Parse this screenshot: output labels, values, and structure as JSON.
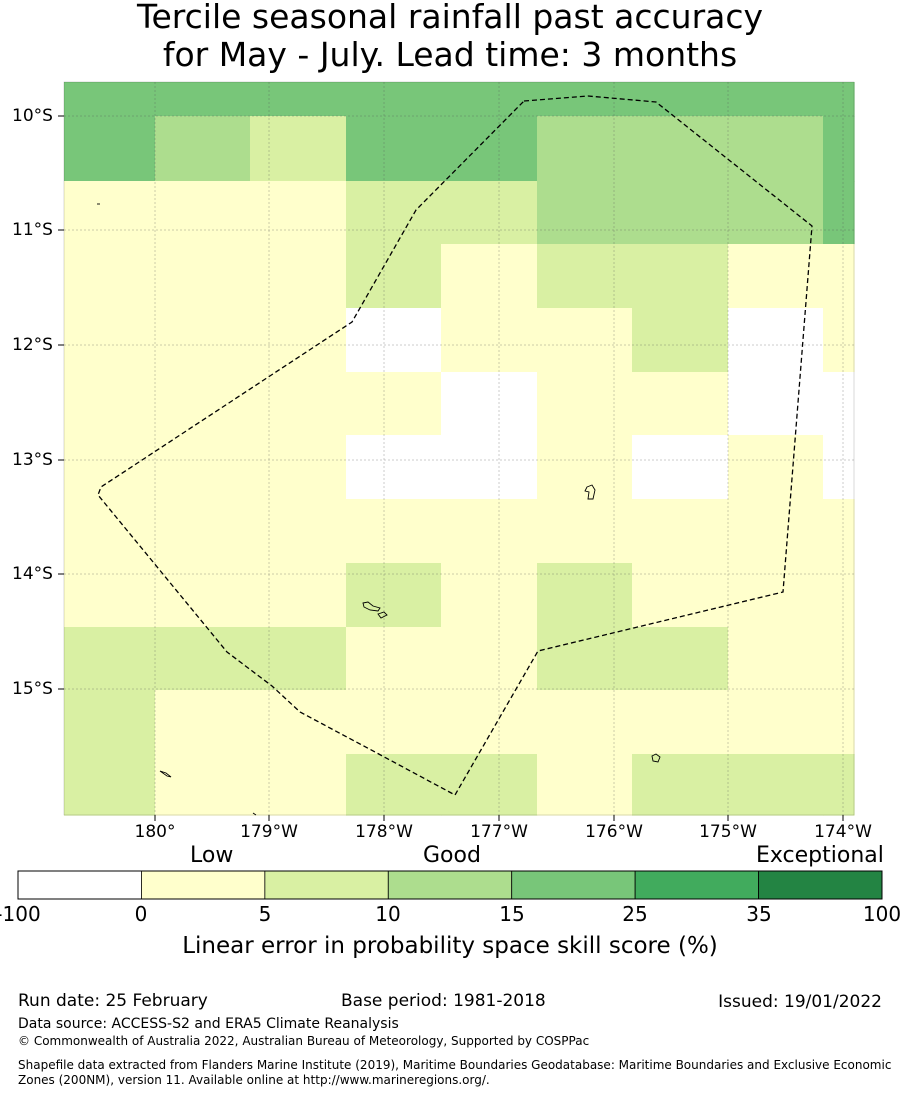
{
  "title": {
    "line1": "Tercile seasonal rainfall past accuracy",
    "line2": "for May - July. Lead time: 3 months"
  },
  "map": {
    "lat_labels": [
      "10°S",
      "11°S",
      "12°S",
      "13°S",
      "14°S",
      "15°S"
    ],
    "lon_labels": [
      "180°",
      "179°W",
      "178°W",
      "177°W",
      "176°W",
      "175°W",
      "174°W"
    ],
    "boundary_style": "dashed black line (EEZ)",
    "skill_grid": [
      [
        3,
        3,
        3,
        3,
        3,
        3,
        3,
        3,
        3
      ],
      [
        3,
        2,
        1,
        3,
        3,
        2,
        2,
        2,
        3
      ],
      [
        0,
        0,
        0,
        1,
        1,
        2,
        2,
        2,
        3
      ],
      [
        0,
        0,
        0,
        1,
        0,
        1,
        1,
        0,
        0
      ],
      [
        0,
        0,
        0,
        -1,
        0,
        0,
        1,
        -1,
        0
      ],
      [
        0,
        0,
        0,
        0,
        -1,
        0,
        0,
        -1,
        -1
      ],
      [
        0,
        0,
        0,
        -1,
        -1,
        0,
        -1,
        0,
        -1
      ],
      [
        0,
        0,
        0,
        0,
        0,
        0,
        0,
        0,
        0
      ],
      [
        0,
        0,
        0,
        1,
        0,
        1,
        0,
        0,
        0
      ],
      [
        1,
        1,
        1,
        0,
        0,
        1,
        1,
        0,
        0
      ],
      [
        1,
        0,
        0,
        0,
        0,
        0,
        0,
        0,
        0
      ],
      [
        1,
        0,
        0,
        1,
        1,
        0,
        1,
        1,
        1
      ]
    ]
  },
  "legend": {
    "categories": [
      "Low",
      "Good",
      "Exceptional"
    ],
    "tick_labels": [
      "-100",
      "0",
      "5",
      "10",
      "15",
      "25",
      "35",
      "100"
    ],
    "bins": [
      {
        "range": "-100 to 0",
        "color": "#ffffff"
      },
      {
        "range": "0 to 5",
        "color": "#ffffcc"
      },
      {
        "range": "5 to 10",
        "color": "#d9f0a3"
      },
      {
        "range": "10 to 15",
        "color": "#addd8e"
      },
      {
        "range": "15 to 25",
        "color": "#78c679"
      },
      {
        "range": "25 to 35",
        "color": "#41ab5d"
      },
      {
        "range": "35 to 100",
        "color": "#238443"
      }
    ],
    "label": "Linear error in probability space skill score (%)"
  },
  "footer": {
    "run_date": "Run date: 25 February",
    "base_period": "Base period: 1981-2018",
    "issued": "Issued: 19/01/2022",
    "data_source": "Data source: ACCESS-S2 and ERA5 Climate Reanalysis",
    "copyright": "© Commonwealth of Australia 2022, Australian Bureau of Meteorology, Supported by COSPPac",
    "shapefile_line1": "Shapefile data extracted from Flanders Marine Institute (2019), Maritime Boundaries Geodatabase: Maritime Boundaries and Exclusive Economic",
    "shapefile_line2": "Zones (200NM), version 11. Available online at http://www.marineregions.org/."
  }
}
